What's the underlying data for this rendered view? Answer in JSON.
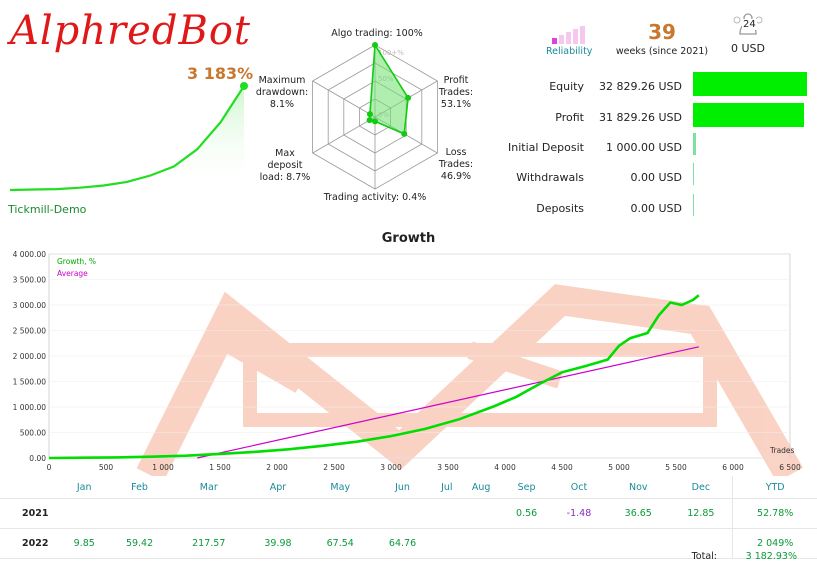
{
  "header": {
    "title": "AlphredBot",
    "gain": "3 183%",
    "account": "Tickmill-Demo"
  },
  "radar": {
    "labels": {
      "algo": "Algo trading: 100%",
      "profit_trades": [
        "Profit",
        "Trades:",
        "53.1%"
      ],
      "loss_trades": [
        "Loss",
        "Trades:",
        "46.9%"
      ],
      "activity": "Trading activity: 0.4%",
      "max_deposit_load": [
        "Max",
        "deposit",
        "load: 8.7%"
      ],
      "max_drawdown": [
        "Maximum",
        "drawdown:",
        "8.1%"
      ]
    },
    "rings": [
      "100+%",
      "50%",
      "0%"
    ],
    "values": {
      "algo": 100,
      "profit_trades": 53.1,
      "loss_trades": 46.9,
      "activity": 0.4,
      "max_deposit_load": 8.7,
      "max_drawdown": 8.1
    }
  },
  "stats": {
    "reliability_label": "Reliability",
    "weeks_value": "39",
    "weeks_label": "weeks (since 2021)",
    "subscribers_count": "24",
    "subscribers_value": "0 USD",
    "rows": [
      {
        "label": "Equity",
        "value": "32 829.26 USD",
        "bar": 1.0
      },
      {
        "label": "Profit",
        "value": "31 829.26 USD",
        "bar": 0.97
      },
      {
        "label": "Initial Deposit",
        "value": "1 000.00 USD",
        "bar": 0.03
      },
      {
        "label": "Withdrawals",
        "value": "0.00 USD",
        "bar": 0.0
      },
      {
        "label": "Deposits",
        "value": "0.00 USD",
        "bar": 0.0
      }
    ]
  },
  "chart_data": {
    "type": "line",
    "title": "Growth",
    "xlabel": "Trades",
    "ylabel": "",
    "xlim": [
      0,
      6500
    ],
    "ylim": [
      0,
      4000
    ],
    "x_ticks": [
      "0",
      "500",
      "1 000",
      "1 500",
      "2 000",
      "2 500",
      "3 000",
      "3 500",
      "4 000",
      "4 500",
      "5 000",
      "5 500",
      "6 000",
      "6 500"
    ],
    "y_ticks": [
      "0.00",
      "500.00",
      "1 000.00",
      "1 500.00",
      "2 000.00",
      "2 500.00",
      "3 000.00",
      "3 500.00",
      "4 000.00"
    ],
    "legend": "top-left",
    "series": [
      {
        "name": "Growth, %",
        "color": "#00dd00",
        "x": [
          0,
          300,
          600,
          900,
          1200,
          1500,
          1800,
          2100,
          2400,
          2700,
          3000,
          3300,
          3600,
          3900,
          4100,
          4300,
          4500,
          4700,
          4900,
          5000,
          5100,
          5250,
          5350,
          5450,
          5550,
          5650,
          5700
        ],
        "y": [
          0,
          5,
          12,
          25,
          45,
          80,
          120,
          170,
          240,
          320,
          430,
          570,
          760,
          1010,
          1200,
          1450,
          1680,
          1800,
          1930,
          2200,
          2350,
          2450,
          2800,
          3050,
          3000,
          3100,
          3190
        ]
      },
      {
        "name": "Average",
        "color": "#cc00cc",
        "x": [
          1300,
          5700
        ],
        "y": [
          0,
          2180
        ]
      }
    ]
  },
  "mini_chart": {
    "type": "line",
    "x": [
      0,
      0.1,
      0.2,
      0.3,
      0.4,
      0.5,
      0.6,
      0.7,
      0.8,
      0.9,
      1.0
    ],
    "y": [
      0,
      1,
      2,
      5,
      10,
      18,
      32,
      52,
      90,
      150,
      230
    ]
  },
  "periods": {
    "months": [
      "Jan",
      "Feb",
      "Mar",
      "Apr",
      "May",
      "Jun",
      "Jul",
      "Aug",
      "Sep",
      "Oct",
      "Nov",
      "Dec"
    ],
    "ytd_label": "YTD",
    "rows": [
      {
        "year": "2021",
        "values": [
          "",
          "",
          "",
          "",
          "",
          "",
          "",
          "",
          "0.56",
          "-1.48",
          "36.65",
          "12.85"
        ],
        "ytd": "52.78%"
      },
      {
        "year": "2022",
        "values": [
          "9.85",
          "59.42",
          "217.57",
          "39.98",
          "67.54",
          "64.76",
          "",
          "",
          "",
          "",
          "",
          ""
        ],
        "ytd": "2 049%"
      }
    ],
    "total_label": "Total:",
    "total_value": "3 182.93%"
  },
  "colors": {
    "accent_green": "#00ee00",
    "title_red": "#e01818",
    "average_purple": "#cc00cc"
  }
}
